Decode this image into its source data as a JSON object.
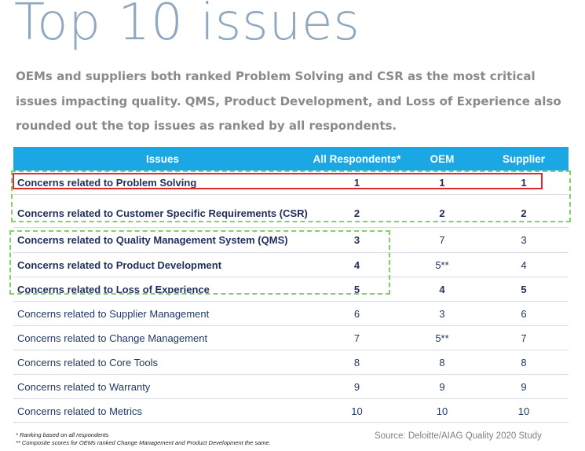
{
  "title": "Top 10 issues",
  "subtitle": "OEMs and suppliers both ranked Problem Solving and CSR as the most critical issues impacting quality. QMS, Product Development, and Loss of Experience also rounded out the top issues as ranked by all respondents.",
  "table": {
    "headers": {
      "issue": "Issues",
      "all": "All Respondents*",
      "oem": "OEM",
      "supplier": "Supplier"
    },
    "rows": [
      {
        "issue": "Concerns related to Problem Solving",
        "all": "1",
        "oem": "1",
        "supplier": "1"
      },
      {
        "issue": "Concerns related to Customer Specific Requirements (CSR)",
        "all": "2",
        "oem": "2",
        "supplier": "2"
      },
      {
        "issue": "Concerns related to Quality Management System (QMS)",
        "all": "3",
        "oem": "7",
        "supplier": "3"
      },
      {
        "issue": "Concerns related to Product Development",
        "all": "4",
        "oem": "5**",
        "supplier": "4"
      },
      {
        "issue": "Concerns related to Loss of Experience",
        "all": "5",
        "oem": "4",
        "supplier": "5"
      },
      {
        "issue": "Concerns related to Supplier Management",
        "all": "6",
        "oem": "3",
        "supplier": "6"
      },
      {
        "issue": "Concerns related to Change Management",
        "all": "7",
        "oem": "5**",
        "supplier": "7"
      },
      {
        "issue": "Concerns related to Core Tools",
        "all": "8",
        "oem": "8",
        "supplier": "8"
      },
      {
        "issue": "Concerns related to Warranty",
        "all": "9",
        "oem": "9",
        "supplier": "9"
      },
      {
        "issue": "Concerns related to Metrics",
        "all": "10",
        "oem": "10",
        "supplier": "10"
      }
    ]
  },
  "footnotes": {
    "note1": "*  Ranking based on all respondents",
    "note2": "** Composite scores for OEMs ranked Change Management and Product Development the same."
  },
  "source": "Source: Deloitte/AIAG Quality 2020 Study",
  "colors": {
    "header_bg": "#1aa7e4",
    "title": "#8fa8bf",
    "highlight_red": "#e0282e",
    "highlight_green": "#7fd16a"
  }
}
